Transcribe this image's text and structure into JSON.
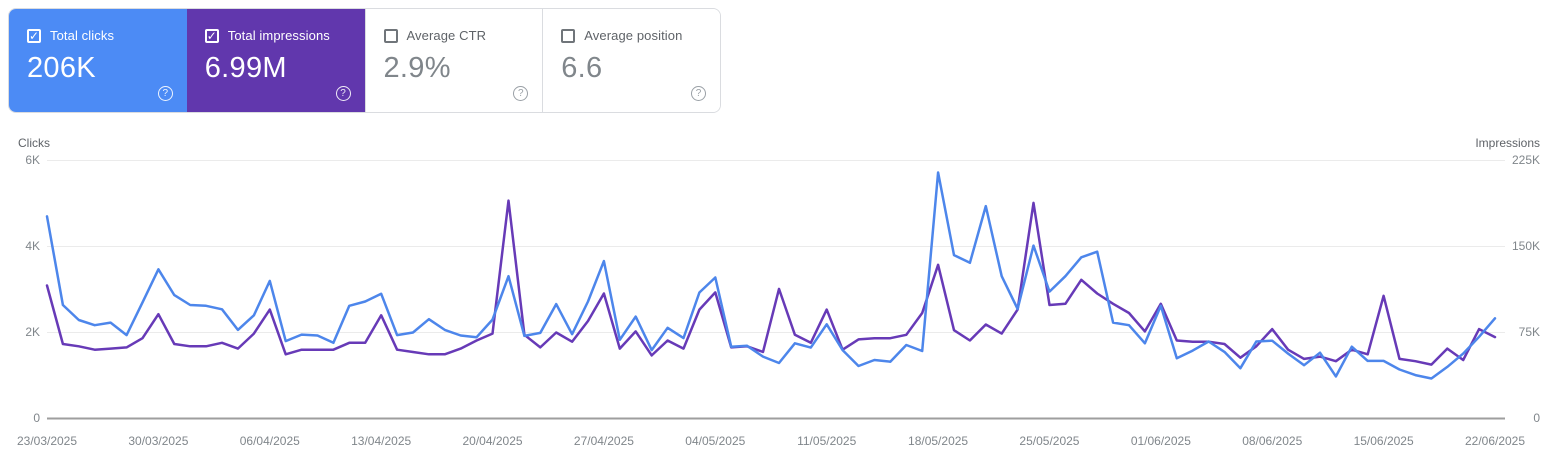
{
  "cards": [
    {
      "label": "Total clicks",
      "value": "206K",
      "selected": true,
      "bg": "#4c8bf5",
      "help_icon": "?"
    },
    {
      "label": "Total impressions",
      "value": "6.99M",
      "selected": true,
      "bg": "#6137ad",
      "help_icon": "?"
    },
    {
      "label": "Average CTR",
      "value": "2.9%",
      "selected": false,
      "bg": "#ffffff",
      "help_icon": "?"
    },
    {
      "label": "Average position",
      "value": "6.6",
      "selected": false,
      "bg": "#ffffff",
      "help_icon": "?"
    }
  ],
  "chart_data": {
    "type": "line",
    "x_start_date": "23/03/2025",
    "x_end_date": "22/06/2025",
    "x_interval": "daily",
    "x_tick_day_indices": [
      0,
      7,
      14,
      21,
      28,
      35,
      42,
      49,
      56,
      63,
      70,
      77,
      84,
      91
    ],
    "x_tick_labels": [
      "23/03/2025",
      "30/03/2025",
      "06/04/2025",
      "13/04/2025",
      "20/04/2025",
      "27/04/2025",
      "04/05/2025",
      "11/05/2025",
      "18/05/2025",
      "25/05/2025",
      "01/06/2025",
      "08/06/2025",
      "15/06/2025",
      "22/06/2025"
    ],
    "y_axis_left": {
      "title": "Clicks",
      "max": 6000,
      "tick_values": [
        0,
        2000,
        4000,
        6000
      ],
      "tick_labels": [
        "0",
        "2K",
        "4K",
        "6K"
      ]
    },
    "y_axis_right": {
      "title": "Impressions",
      "max": 225000,
      "tick_values": [
        0,
        75000,
        150000,
        225000
      ],
      "tick_labels": [
        "0",
        "75K",
        "150K",
        "225K"
      ]
    },
    "grid": "horizontal",
    "series": [
      {
        "name": "Clicks",
        "axis": "left",
        "color": "#4d86eb",
        "values": [
          4700,
          2640,
          2290,
          2170,
          2230,
          1940,
          2700,
          3470,
          2870,
          2640,
          2620,
          2540,
          2060,
          2400,
          3200,
          1800,
          1950,
          1930,
          1760,
          2620,
          2720,
          2900,
          1940,
          2000,
          2310,
          2060,
          1930,
          1890,
          2300,
          3310,
          1920,
          1990,
          2660,
          1960,
          2720,
          3660,
          1830,
          2370,
          1590,
          2110,
          1870,
          2930,
          3280,
          1670,
          1690,
          1440,
          1290,
          1750,
          1650,
          2190,
          1590,
          1220,
          1360,
          1320,
          1710,
          1570,
          5720,
          3800,
          3620,
          4940,
          3310,
          2550,
          4020,
          2950,
          3310,
          3750,
          3880,
          2230,
          2170,
          1750,
          2620,
          1400,
          1580,
          1790,
          1550,
          1170,
          1790,
          1810,
          1510,
          1240,
          1530,
          980,
          1670,
          1340,
          1340,
          1140,
          1010,
          930,
          1200,
          1510,
          1900,
          2330
        ]
      },
      {
        "name": "Impressions",
        "axis": "right",
        "color": "#673ab7",
        "values": [
          116000,
          65000,
          63000,
          60000,
          61000,
          62000,
          70000,
          91000,
          65000,
          63000,
          63000,
          66000,
          61000,
          74000,
          95000,
          56000,
          60000,
          60000,
          60000,
          66000,
          66000,
          90000,
          60000,
          58000,
          56000,
          56000,
          61000,
          68000,
          74000,
          190000,
          73000,
          62000,
          75000,
          67000,
          85000,
          109000,
          61000,
          76000,
          55000,
          68000,
          61000,
          95000,
          110000,
          62000,
          63000,
          58000,
          113000,
          73000,
          66000,
          95000,
          60000,
          69000,
          70000,
          70000,
          73000,
          92000,
          134000,
          77000,
          68000,
          82000,
          74000,
          95000,
          188000,
          99000,
          100000,
          121000,
          109000,
          100000,
          92000,
          76000,
          100000,
          68000,
          67000,
          67000,
          65000,
          53000,
          63000,
          78000,
          60000,
          52000,
          54000,
          50000,
          60000,
          56000,
          107000,
          52000,
          50000,
          47000,
          61000,
          51000,
          78000,
          71000
        ]
      }
    ],
    "grid_color": "#ebebeb",
    "axis_line_color": "#9e9e9e"
  }
}
